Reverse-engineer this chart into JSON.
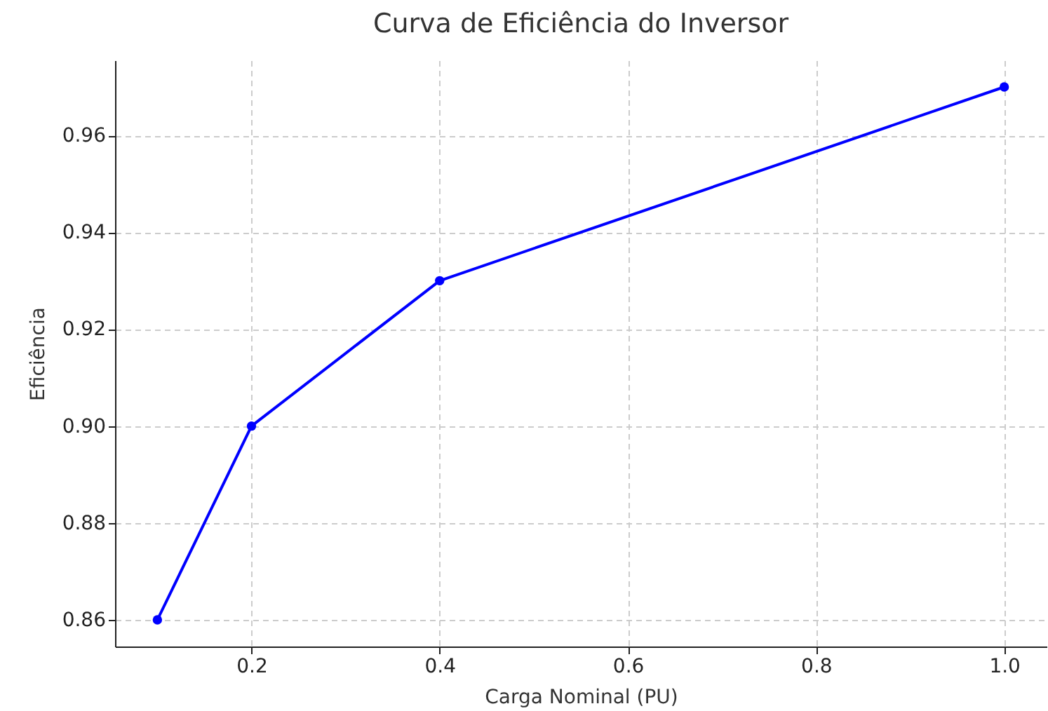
{
  "chart_data": {
    "type": "line",
    "title": "Curva de Eficiência do Inversor",
    "xlabel": "Carga Nominal (PU)",
    "ylabel": "Eficiência",
    "x": [
      0.1,
      0.2,
      0.4,
      1.0
    ],
    "series": [
      {
        "color": "#0000ff",
        "values": [
          0.86,
          0.9,
          0.93,
          0.97
        ]
      }
    ],
    "xlim": [
      0.055,
      1.045
    ],
    "ylim": [
      0.8545,
      0.9755
    ],
    "xticks": [
      0.2,
      0.4,
      0.6,
      0.8,
      {
        "value": 1,
        "label": "1.0"
      }
    ],
    "yticks": [
      0.86,
      0.88,
      {
        "value": 0.9,
        "label": "0.90"
      },
      0.92,
      0.94,
      0.96
    ],
    "grid": true,
    "marker": "circle",
    "line_style": "solid"
  }
}
